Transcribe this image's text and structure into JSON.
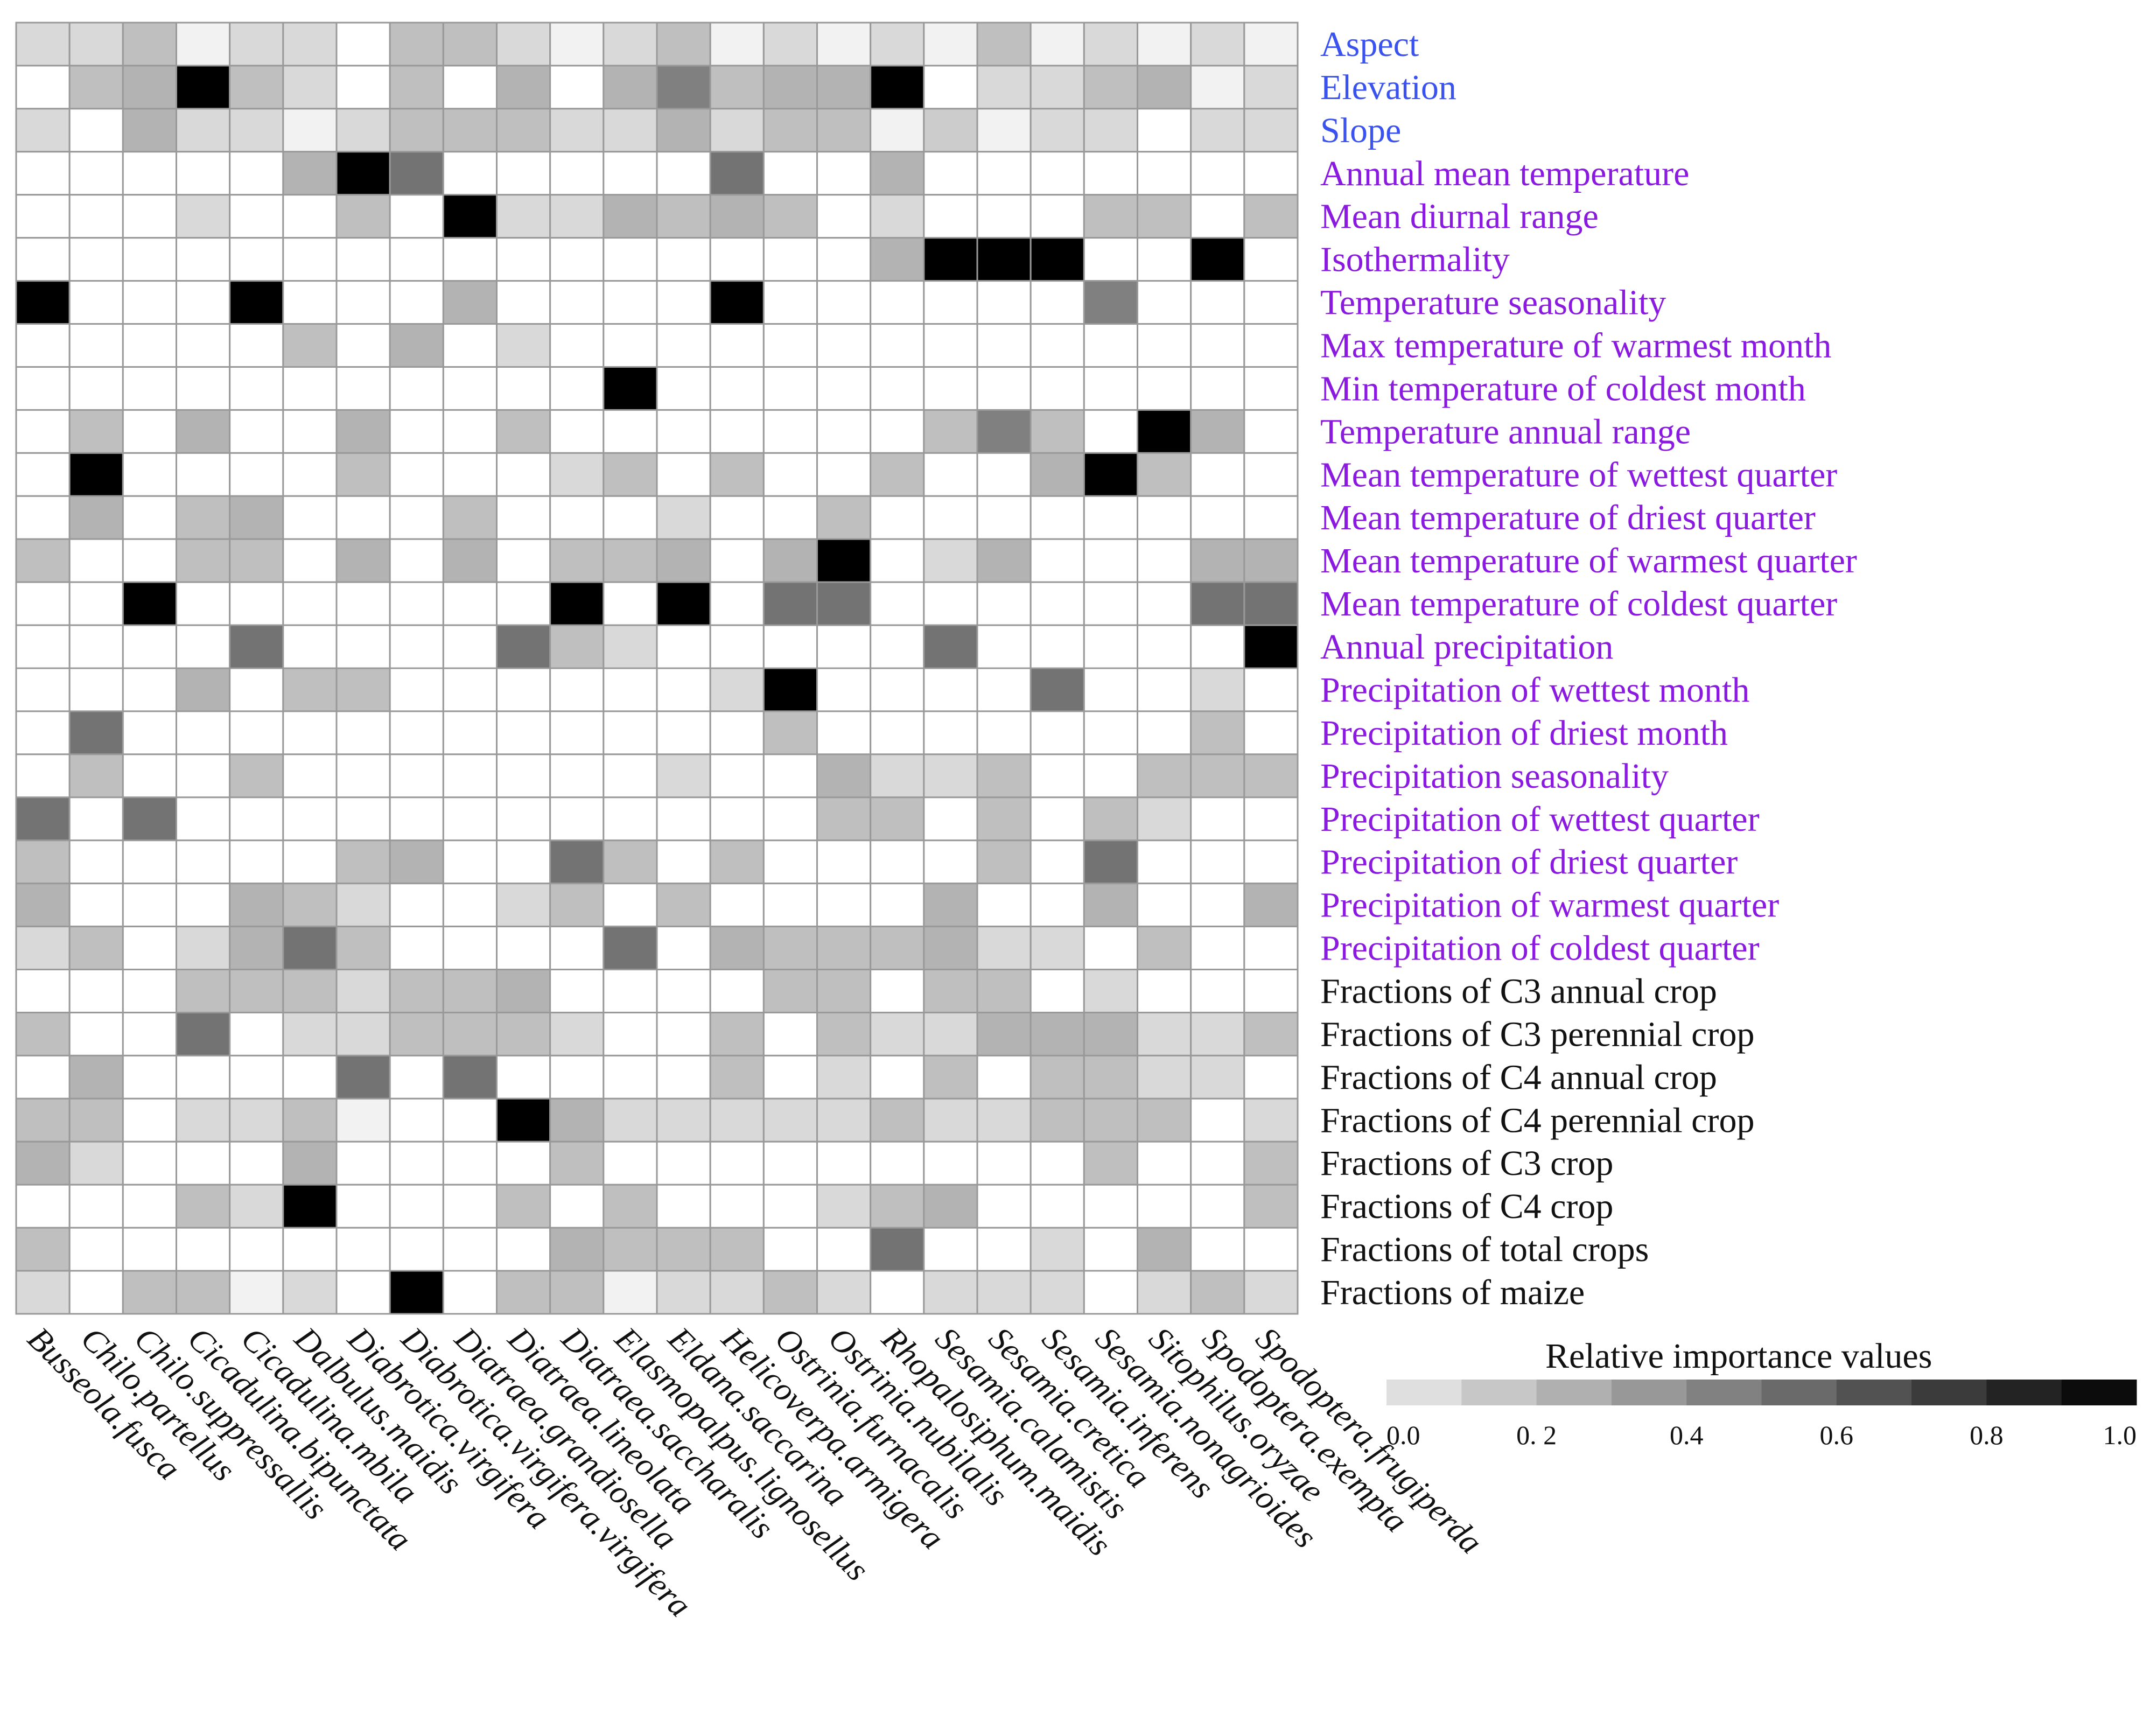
{
  "chart_data": {
    "type": "heatmap",
    "columns": [
      "Busseola.fusca",
      "Chilo.partellus",
      "Chilo.suppressallis",
      "Cicadulina.bipunctata",
      "Cicadulina.mbila",
      "Dalbulus.maidis",
      "Diabrotica.virgifera",
      "Diabrotica.virgifera.virgifera",
      "Diatraea.grandiosella",
      "Diatraea.lineolata",
      "Diatraea.saccharalis",
      "Elasmopalpus.lignosellus",
      "Eldana.saccarina",
      "Helicoverpa.armigera",
      "Ostrinia.furnacalis",
      "Ostrinia.nubilalis",
      "Rhopalosiphum.maidis",
      "Sesamia.calamistis",
      "Sesamia.cretica",
      "Sesamia.inferens",
      "Sesamia.nonagrioides",
      "Sitophilus.oryzae",
      "Spodoptera.exempta",
      "Spodoptera.frugiperda"
    ],
    "rows": [
      {
        "label": "Aspect",
        "group": "topography"
      },
      {
        "label": "Elevation",
        "group": "topography"
      },
      {
        "label": "Slope",
        "group": "topography"
      },
      {
        "label": "Annual mean temperature",
        "group": "climate"
      },
      {
        "label": "Mean diurnal range",
        "group": "climate"
      },
      {
        "label": "Isothermality",
        "group": "climate"
      },
      {
        "label": "Temperature seasonality",
        "group": "climate"
      },
      {
        "label": "Max temperature of warmest month",
        "group": "climate"
      },
      {
        "label": "Min temperature of coldest month",
        "group": "climate"
      },
      {
        "label": "Temperature annual range",
        "group": "climate"
      },
      {
        "label": "Mean temperature of  wettest quarter",
        "group": "climate"
      },
      {
        "label": "Mean temperature of  driest quarter",
        "group": "climate"
      },
      {
        "label": "Mean temperature of  warmest quarter",
        "group": "climate"
      },
      {
        "label": "Mean temperature of  coldest quarter",
        "group": "climate"
      },
      {
        "label": "Annual precipitation",
        "group": "climate"
      },
      {
        "label": "Precipitation of wettest month",
        "group": "climate"
      },
      {
        "label": "Precipitation of driest month",
        "group": "climate"
      },
      {
        "label": "Precipitation seasonality",
        "group": "climate"
      },
      {
        "label": "Precipitation of  wettest quarter",
        "group": "climate"
      },
      {
        "label": "Precipitation of  driest quarter",
        "group": "climate"
      },
      {
        "label": "Precipitation of  warmest quarter",
        "group": "climate"
      },
      {
        "label": "Precipitation of  coldest quarter",
        "group": "climate"
      },
      {
        "label": "Fractions of C3 annual crop",
        "group": "crop"
      },
      {
        "label": "Fractions of C3 perennial crop",
        "group": "crop"
      },
      {
        "label": "Fractions of C4 annual crop",
        "group": "crop"
      },
      {
        "label": "Fractions of C4 perennial crop",
        "group": "crop"
      },
      {
        "label": "Fractions of C3 crop",
        "group": "crop"
      },
      {
        "label": "Fractions of C4 crop",
        "group": "crop"
      },
      {
        "label": "Fractions of total crops",
        "group": "crop"
      },
      {
        "label": "Fractions of maize",
        "group": "crop"
      }
    ],
    "values": [
      [
        0.15,
        0.15,
        0.25,
        0.05,
        0.15,
        0.15,
        0.0,
        0.25,
        0.25,
        0.15,
        0.05,
        0.15,
        0.25,
        0.05,
        0.15,
        0.05,
        0.15,
        0.05,
        0.25,
        0.05,
        0.15,
        0.05,
        0.15,
        0.05
      ],
      [
        0.0,
        0.25,
        0.3,
        1.0,
        0.25,
        0.15,
        0.0,
        0.25,
        0.0,
        0.3,
        0.0,
        0.3,
        0.5,
        0.25,
        0.3,
        0.3,
        1.0,
        0.0,
        0.15,
        0.15,
        0.25,
        0.3,
        0.05,
        0.15
      ],
      [
        0.15,
        0.0,
        0.3,
        0.15,
        0.15,
        0.05,
        0.15,
        0.25,
        0.25,
        0.25,
        0.15,
        0.15,
        0.3,
        0.15,
        0.25,
        0.25,
        0.05,
        0.2,
        0.05,
        0.15,
        0.15,
        0.0,
        0.15,
        0.15
      ],
      [
        0.0,
        0.0,
        0.0,
        0.0,
        0.0,
        0.3,
        1.0,
        0.55,
        0.0,
        0.0,
        0.0,
        0.0,
        0.0,
        0.55,
        0.0,
        0.0,
        0.3,
        0.0,
        0.0,
        0.0,
        0.0,
        0.0,
        0.0,
        0.0
      ],
      [
        0.0,
        0.0,
        0.0,
        0.15,
        0.0,
        0.0,
        0.25,
        0.0,
        1.0,
        0.15,
        0.15,
        0.3,
        0.25,
        0.3,
        0.25,
        0.0,
        0.15,
        0.0,
        0.0,
        0.0,
        0.25,
        0.25,
        0.0,
        0.25
      ],
      [
        0.0,
        0.0,
        0.0,
        0.0,
        0.0,
        0.0,
        0.0,
        0.0,
        0.0,
        0.0,
        0.0,
        0.0,
        0.0,
        0.0,
        0.0,
        0.0,
        0.3,
        1.0,
        1.0,
        1.0,
        0.0,
        0.0,
        1.0,
        0.0
      ],
      [
        1.0,
        0.0,
        0.0,
        0.0,
        1.0,
        0.0,
        0.0,
        0.0,
        0.3,
        0.0,
        0.0,
        0.0,
        0.0,
        1.0,
        0.0,
        0.0,
        0.0,
        0.0,
        0.0,
        0.0,
        0.5,
        0.0,
        0.0,
        0.0
      ],
      [
        0.0,
        0.0,
        0.0,
        0.0,
        0.0,
        0.25,
        0.0,
        0.3,
        0.0,
        0.15,
        0.0,
        0.0,
        0.0,
        0.0,
        0.0,
        0.0,
        0.0,
        0.0,
        0.0,
        0.0,
        0.0,
        0.0,
        0.0,
        0.0
      ],
      [
        0.0,
        0.0,
        0.0,
        0.0,
        0.0,
        0.0,
        0.0,
        0.0,
        0.0,
        0.0,
        0.0,
        1.0,
        0.0,
        0.0,
        0.0,
        0.0,
        0.0,
        0.0,
        0.0,
        0.0,
        0.0,
        0.0,
        0.0,
        0.0
      ],
      [
        0.0,
        0.25,
        0.0,
        0.3,
        0.0,
        0.0,
        0.3,
        0.0,
        0.0,
        0.25,
        0.0,
        0.0,
        0.0,
        0.0,
        0.0,
        0.0,
        0.0,
        0.25,
        0.5,
        0.25,
        0.0,
        1.0,
        0.3,
        0.0
      ],
      [
        0.0,
        1.0,
        0.0,
        0.0,
        0.0,
        0.0,
        0.25,
        0.0,
        0.0,
        0.0,
        0.15,
        0.25,
        0.0,
        0.25,
        0.0,
        0.0,
        0.25,
        0.0,
        0.0,
        0.3,
        1.0,
        0.25,
        0.0,
        0.0
      ],
      [
        0.0,
        0.3,
        0.0,
        0.25,
        0.3,
        0.0,
        0.0,
        0.0,
        0.25,
        0.0,
        0.0,
        0.0,
        0.15,
        0.0,
        0.0,
        0.25,
        0.0,
        0.0,
        0.0,
        0.0,
        0.0,
        0.0,
        0.0,
        0.0
      ],
      [
        0.25,
        0.0,
        0.0,
        0.25,
        0.25,
        0.0,
        0.3,
        0.0,
        0.3,
        0.0,
        0.25,
        0.25,
        0.3,
        0.0,
        0.3,
        1.0,
        0.0,
        0.15,
        0.3,
        0.0,
        0.0,
        0.0,
        0.3,
        0.3
      ],
      [
        0.0,
        0.0,
        1.0,
        0.0,
        0.0,
        0.0,
        0.0,
        0.0,
        0.0,
        0.0,
        1.0,
        0.0,
        1.0,
        0.0,
        0.55,
        0.55,
        0.0,
        0.0,
        0.0,
        0.0,
        0.0,
        0.0,
        0.55,
        0.55
      ],
      [
        0.0,
        0.0,
        0.0,
        0.0,
        0.55,
        0.0,
        0.0,
        0.0,
        0.0,
        0.55,
        0.25,
        0.15,
        0.0,
        0.0,
        0.0,
        0.0,
        0.0,
        0.55,
        0.0,
        0.0,
        0.0,
        0.0,
        0.0,
        1.0
      ],
      [
        0.0,
        0.0,
        0.0,
        0.3,
        0.0,
        0.25,
        0.25,
        0.0,
        0.0,
        0.0,
        0.0,
        0.0,
        0.0,
        0.15,
        1.0,
        0.0,
        0.0,
        0.0,
        0.0,
        0.55,
        0.0,
        0.0,
        0.15,
        0.0
      ],
      [
        0.0,
        0.55,
        0.0,
        0.0,
        0.0,
        0.0,
        0.0,
        0.0,
        0.0,
        0.0,
        0.0,
        0.0,
        0.0,
        0.0,
        0.25,
        0.0,
        0.0,
        0.0,
        0.0,
        0.0,
        0.0,
        0.0,
        0.25,
        0.0
      ],
      [
        0.0,
        0.25,
        0.0,
        0.0,
        0.25,
        0.0,
        0.0,
        0.0,
        0.0,
        0.0,
        0.0,
        0.0,
        0.15,
        0.0,
        0.0,
        0.3,
        0.15,
        0.15,
        0.25,
        0.0,
        0.0,
        0.25,
        0.25,
        0.25
      ],
      [
        0.55,
        0.0,
        0.55,
        0.0,
        0.0,
        0.0,
        0.0,
        0.0,
        0.0,
        0.0,
        0.0,
        0.0,
        0.0,
        0.0,
        0.0,
        0.25,
        0.25,
        0.0,
        0.25,
        0.0,
        0.25,
        0.15,
        0.0,
        0.0
      ],
      [
        0.25,
        0.0,
        0.0,
        0.0,
        0.0,
        0.0,
        0.25,
        0.3,
        0.0,
        0.0,
        0.55,
        0.25,
        0.0,
        0.25,
        0.0,
        0.0,
        0.0,
        0.0,
        0.25,
        0.0,
        0.55,
        0.0,
        0.0,
        0.0
      ],
      [
        0.3,
        0.0,
        0.0,
        0.0,
        0.3,
        0.25,
        0.15,
        0.0,
        0.0,
        0.15,
        0.25,
        0.0,
        0.25,
        0.0,
        0.0,
        0.0,
        0.0,
        0.3,
        0.0,
        0.0,
        0.3,
        0.0,
        0.0,
        0.3
      ],
      [
        0.15,
        0.25,
        0.0,
        0.15,
        0.3,
        0.55,
        0.25,
        0.0,
        0.0,
        0.0,
        0.0,
        0.55,
        0.0,
        0.3,
        0.25,
        0.25,
        0.25,
        0.3,
        0.15,
        0.15,
        0.0,
        0.25,
        0.0,
        0.0
      ],
      [
        0.0,
        0.0,
        0.0,
        0.25,
        0.25,
        0.25,
        0.15,
        0.25,
        0.25,
        0.3,
        0.0,
        0.0,
        0.0,
        0.0,
        0.25,
        0.25,
        0.0,
        0.25,
        0.25,
        0.0,
        0.15,
        0.0,
        0.0,
        0.0
      ],
      [
        0.25,
        0.0,
        0.0,
        0.55,
        0.0,
        0.15,
        0.15,
        0.25,
        0.25,
        0.25,
        0.15,
        0.0,
        0.0,
        0.25,
        0.0,
        0.25,
        0.15,
        0.15,
        0.3,
        0.3,
        0.3,
        0.15,
        0.15,
        0.25
      ],
      [
        0.0,
        0.3,
        0.0,
        0.0,
        0.0,
        0.0,
        0.55,
        0.0,
        0.55,
        0.0,
        0.0,
        0.0,
        0.0,
        0.25,
        0.0,
        0.15,
        0.0,
        0.25,
        0.0,
        0.25,
        0.25,
        0.15,
        0.15,
        0.0
      ],
      [
        0.25,
        0.25,
        0.0,
        0.15,
        0.15,
        0.25,
        0.05,
        0.0,
        0.0,
        1.0,
        0.3,
        0.15,
        0.15,
        0.15,
        0.15,
        0.15,
        0.25,
        0.15,
        0.15,
        0.25,
        0.25,
        0.25,
        0.0,
        0.15
      ],
      [
        0.3,
        0.15,
        0.0,
        0.0,
        0.0,
        0.3,
        0.0,
        0.0,
        0.0,
        0.0,
        0.25,
        0.0,
        0.0,
        0.0,
        0.0,
        0.0,
        0.0,
        0.0,
        0.0,
        0.0,
        0.25,
        0.0,
        0.0,
        0.25
      ],
      [
        0.0,
        0.0,
        0.0,
        0.25,
        0.15,
        1.0,
        0.0,
        0.0,
        0.0,
        0.25,
        0.0,
        0.25,
        0.0,
        0.0,
        0.0,
        0.15,
        0.25,
        0.3,
        0.0,
        0.0,
        0.0,
        0.0,
        0.0,
        0.25
      ],
      [
        0.25,
        0.0,
        0.0,
        0.0,
        0.0,
        0.0,
        0.0,
        0.0,
        0.0,
        0.0,
        0.3,
        0.25,
        0.25,
        0.25,
        0.0,
        0.0,
        0.55,
        0.0,
        0.0,
        0.15,
        0.0,
        0.3,
        0.0,
        0.0
      ],
      [
        0.15,
        0.0,
        0.25,
        0.25,
        0.05,
        0.15,
        0.0,
        1.0,
        0.0,
        0.25,
        0.25,
        0.05,
        0.15,
        0.15,
        0.25,
        0.15,
        0.0,
        0.15,
        0.15,
        0.15,
        0.0,
        0.15,
        0.25,
        0.15
      ]
    ],
    "legend": {
      "title": "Relative importance values",
      "range": [
        0.0,
        1.0
      ],
      "ticks": [
        "0.0",
        "0. 2",
        "0.4",
        "0.6",
        "0.8",
        "1.0"
      ]
    },
    "colors": {
      "low": "#ffffff",
      "high": "#000000",
      "grid": "#999999",
      "topography": "#3a52ee",
      "climate": "#8b1ae0",
      "crop": "#111111"
    }
  }
}
